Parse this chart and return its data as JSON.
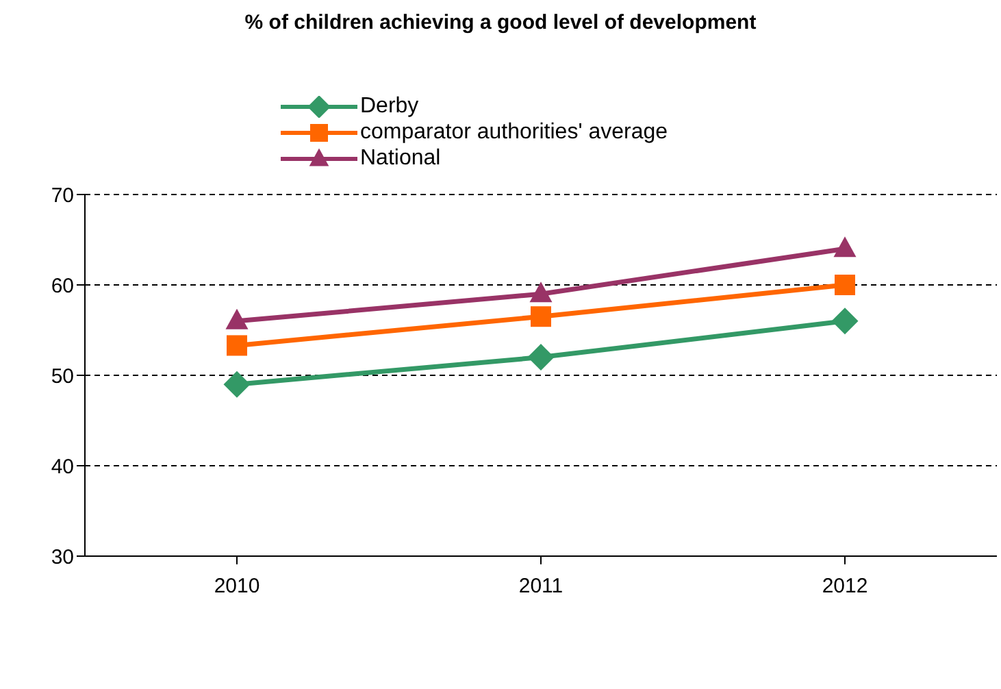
{
  "chart_data": {
    "type": "line",
    "title": "% of children achieving a good level of development",
    "categories": [
      "2010",
      "2011",
      "2012"
    ],
    "series": [
      {
        "name": "Derby",
        "color": "#339966",
        "marker": "diamond",
        "values": [
          49,
          52,
          56
        ]
      },
      {
        "name": "comparator authorities' average",
        "color": "#ff6600",
        "marker": "square",
        "values": [
          53.3,
          56.5,
          60
        ]
      },
      {
        "name": "National",
        "color": "#993366",
        "marker": "triangle",
        "values": [
          56,
          59,
          64
        ]
      }
    ],
    "ylim": [
      30,
      70
    ],
    "yticks": [
      30,
      40,
      50,
      60,
      70
    ],
    "grid": "y",
    "legend": "top"
  }
}
